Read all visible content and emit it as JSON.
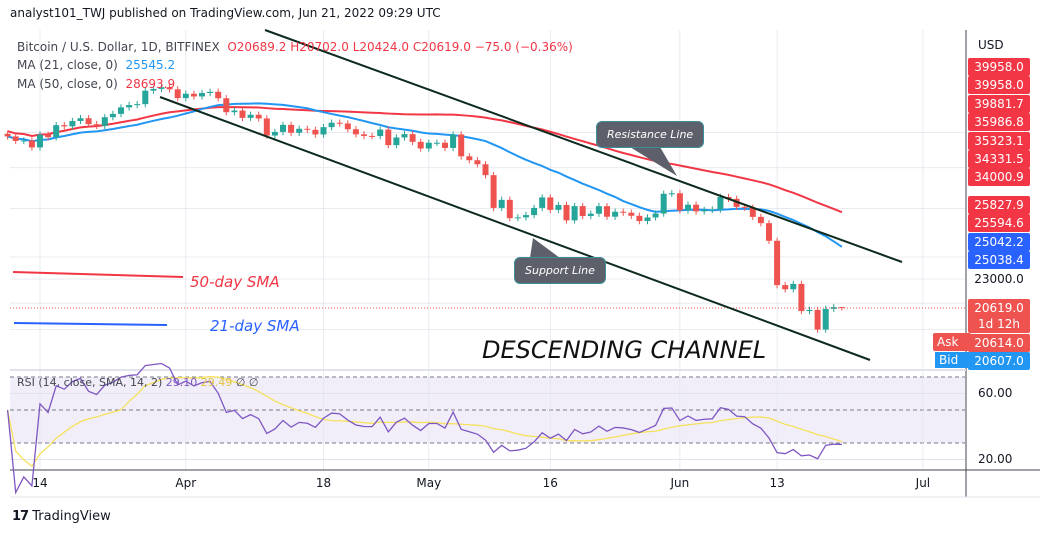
{
  "header": {
    "published": "analyst101_TWJ published on TradingView.com, Jun 21, 2022 09:29 UTC",
    "symbol": "Bitcoin / U.S. Dollar, 1D, BITFINEX",
    "open": "O20689.2",
    "high": "H20702.0",
    "low": "L20424.0",
    "close": "C20619.0",
    "change": "−75.0 (−0.36%)",
    "ma21_label": "MA (21, close, 0)",
    "ma21_value": "25545.2",
    "ma50_label": "MA (50, close, 0)",
    "ma50_value": "28693.9"
  },
  "price_scale": {
    "currency": "USD",
    "labels": [
      {
        "text": "39958.0",
        "color": "#f23645"
      },
      {
        "text": "39958.0",
        "color": "#f23645"
      },
      {
        "text": "39881.7",
        "color": "#f23645"
      },
      {
        "text": "35986.8",
        "color": "#f23645"
      },
      {
        "text": "35323.1",
        "color": "#f23645"
      },
      {
        "text": "34331.5",
        "color": "#f23645"
      },
      {
        "text": "34000.9",
        "color": "#f23645"
      },
      {
        "text": "25827.9",
        "color": "#f23645"
      },
      {
        "text": "25594.6",
        "color": "#f23645"
      },
      {
        "text": "25042.2",
        "color": "#2962ff"
      },
      {
        "text": "25038.4",
        "color": "#2962ff"
      },
      {
        "text": "23000.0",
        "color": ""
      },
      {
        "text": "20619.0",
        "color": "#ef5350"
      },
      {
        "text": "1d 12h",
        "color": "#ef5350"
      },
      {
        "text": "20614.0",
        "color": "#ef5350"
      },
      {
        "text": "20607.0",
        "color": "#2196f3"
      }
    ],
    "ask_label": "Ask",
    "bid_label": "Bid"
  },
  "annotations": {
    "resistance": "Resistance Line",
    "support": "Support Line",
    "title": "DESCENDING CHANNEL",
    "sma50": "50-day SMA",
    "sma21": "21-day SMA"
  },
  "rsi": {
    "label": "RSI (14, close, SMA, 14, 2)",
    "value": "29.10",
    "sma_value": "29.49",
    "extra": "∅ ∅",
    "ticks": [
      "60.00",
      "20.00"
    ]
  },
  "branding": "TradingView",
  "chart_data": {
    "type": "candlestick",
    "symbol": "BTC/USD",
    "timeframe": "1D",
    "scale": "log",
    "start_date": "2022-03-10",
    "x_ticks": [
      "14",
      "Apr",
      "18",
      "May",
      "16",
      "Jun",
      "13",
      "Jul"
    ],
    "closes": [
      39400,
      38730,
      38800,
      37800,
      39670,
      39280,
      41110,
      40920,
      41760,
      42200,
      41260,
      41000,
      42360,
      42890,
      43960,
      44350,
      44500,
      46820,
      47130,
      47430,
      47060,
      45530,
      46280,
      45810,
      46410,
      46620,
      45500,
      43170,
      43440,
      42250,
      42750,
      42160,
      39530,
      40070,
      41150,
      39940,
      40550,
      40390,
      39690,
      40800,
      41490,
      41370,
      40480,
      39710,
      39470,
      39450,
      40430,
      38120,
      39240,
      39740,
      38600,
      37640,
      38470,
      38470,
      37720,
      39690,
      36550,
      36010,
      35470,
      34040,
      30080,
      31010,
      28940,
      29030,
      29280,
      30080,
      31300,
      29860,
      30420,
      28700,
      30290,
      29180,
      29430,
      30280,
      29100,
      29650,
      29540,
      29200,
      28630,
      29020,
      29450,
      31730,
      31790,
      29800,
      30450,
      29690,
      29850,
      29900,
      31350,
      31130,
      30200,
      30110,
      29080,
      28400,
      26570,
      22480,
      22130,
      22580,
      20380,
      20470,
      19010,
      20550,
      20690,
      20619
    ],
    "last_open": 20689.2,
    "last_high": 20702.0,
    "last_low": 20424.0,
    "indicators": [
      "MA 21",
      "MA 50",
      "RSI 14"
    ],
    "colors": {
      "up": "#26a69a",
      "down": "#ef5350",
      "ma21": "#2196f3",
      "ma50": "#f23645",
      "rsi": "#7e57c2",
      "rsi_sma": "#f5e15b",
      "channel": "#0d2a1e"
    }
  }
}
